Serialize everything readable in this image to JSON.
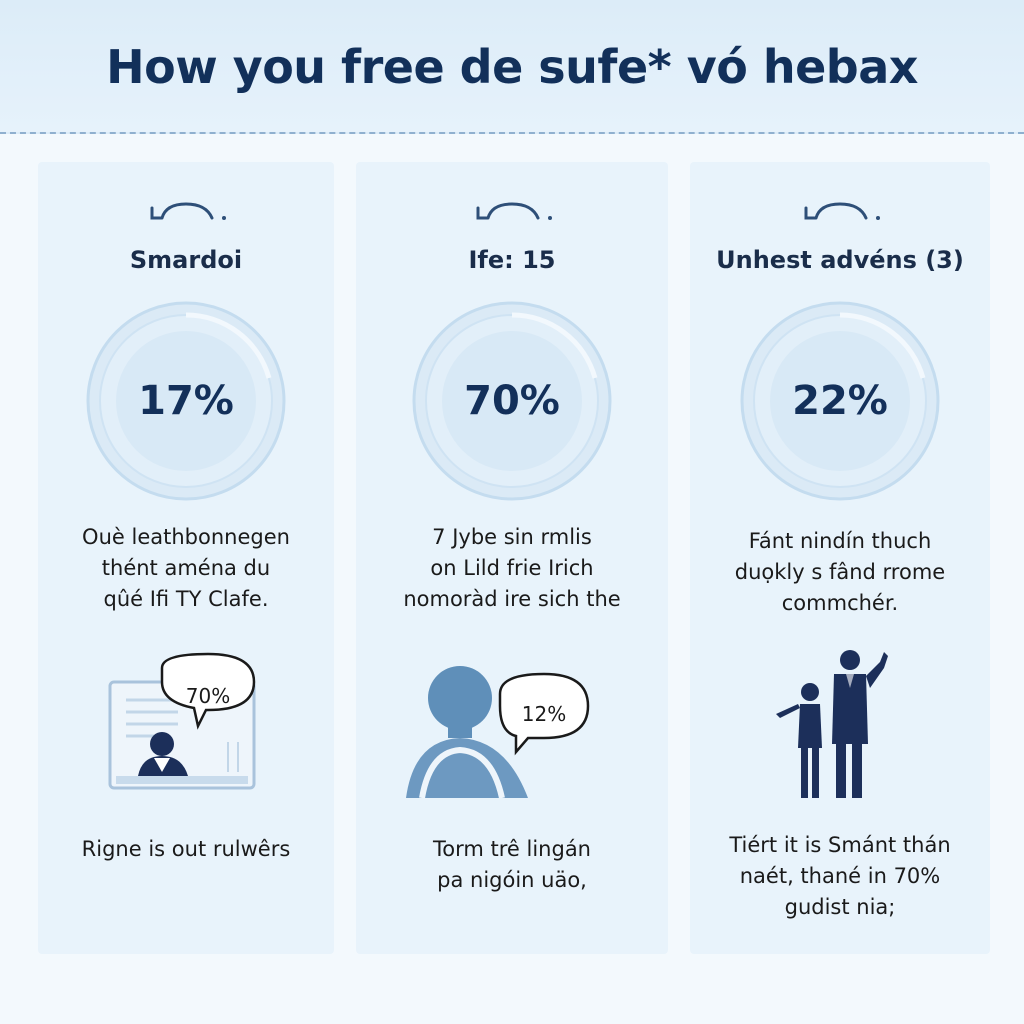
{
  "title": "How you free de sufe* vó hebax",
  "colors": {
    "accent": "#12305a",
    "ring": "#d3e7f6",
    "figure": "#5f8fb9",
    "figure_dark": "#1c2f5a"
  },
  "cards": [
    {
      "icon": "glasses-icon",
      "heading": "Smardoi",
      "percent": "17%",
      "percent_value": 17,
      "description": [
        "Ouè leathbonnegen",
        "thént aména du",
        "qûé Ifi TY Clafe."
      ],
      "illustration": "computer-screen-person",
      "bubble": "70%",
      "footer": [
        "Rigne is out rulwêrs"
      ]
    },
    {
      "icon": "glasses-icon",
      "heading": "Ife: 15",
      "percent": "70%",
      "percent_value": 70,
      "description": [
        "7 Jybe sin rmlis",
        "on Lild frie Irich",
        "nomoràd ire sich the"
      ],
      "illustration": "person-bust",
      "bubble": "12%",
      "footer": [
        "Torm trê lingán",
        "pa nigóin uäo,"
      ]
    },
    {
      "icon": "glasses-icon",
      "heading": "Unhest advéns (3)",
      "percent": "22%",
      "percent_value": 22,
      "description": [
        "Fánt nindín thuch",
        "duọkly s fând rrome",
        "commchér."
      ],
      "illustration": "two-people-silhouettes",
      "bubble": "",
      "footer": [
        "Tiért it is Smánt thán",
        "naét, thané in 70%",
        "gudist nia;"
      ]
    }
  ]
}
